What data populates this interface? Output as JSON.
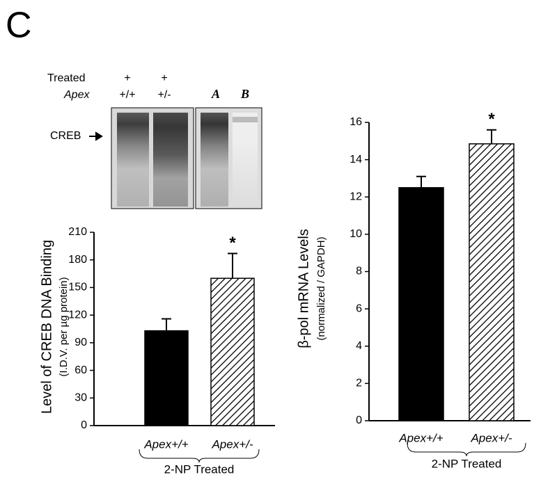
{
  "panel_label": "C",
  "gel": {
    "row_labels": [
      "Treated",
      "Apex"
    ],
    "treated": [
      "+",
      "+"
    ],
    "genotype": [
      "+/+",
      "+/-"
    ],
    "lanes_right": [
      "A",
      "B"
    ],
    "band_label": "CREB"
  },
  "chart_data": [
    {
      "type": "bar",
      "y_label": "Level of CREB DNA Binding",
      "y_sublabel": "(I.D.V.  per µg protein)",
      "categories": [
        "Apex+/+",
        "Apex+/-"
      ],
      "values": [
        103,
        160
      ],
      "errors": [
        13,
        27
      ],
      "bar_styles": [
        "solid",
        "hatched"
      ],
      "color": "#000000",
      "annotation": "*",
      "group_label": "2-NP Treated",
      "ylim": [
        0,
        210
      ],
      "yticks": [
        0,
        30,
        60,
        90,
        120,
        150,
        180,
        210
      ]
    },
    {
      "type": "bar",
      "y_label": "β-pol mRNA Levels",
      "y_sublabel": "(normalized / GAPDH)",
      "categories": [
        "Apex+/+",
        "Apex+/-"
      ],
      "values": [
        12.5,
        14.85
      ],
      "errors": [
        0.6,
        0.75
      ],
      "bar_styles": [
        "solid",
        "hatched"
      ],
      "color": "#000000",
      "annotation": "*",
      "group_label": "2-NP Treated",
      "ylim": [
        0,
        16
      ],
      "yticks": [
        0,
        2,
        4,
        6,
        8,
        10,
        12,
        14,
        16
      ]
    }
  ]
}
